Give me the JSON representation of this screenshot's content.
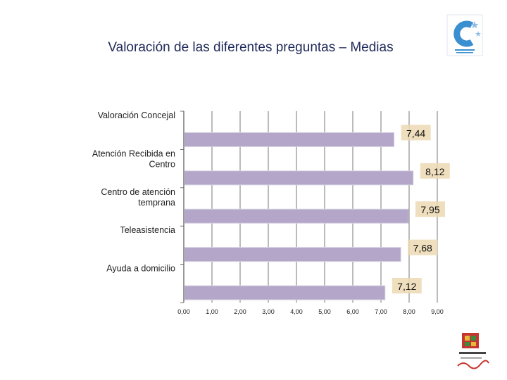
{
  "title": "Valoración de las diferentes preguntas – Medias",
  "logos": {
    "top_right": "consejo-icon",
    "bottom_right": "las-torres-icon"
  },
  "colors": {
    "bar": "#b3a6c9",
    "value_box": "#ecd9b3",
    "grid": "#555555"
  },
  "chart_data": {
    "type": "bar",
    "orientation": "horizontal",
    "title": "Valoración de las diferentes preguntas – Medias",
    "categories": [
      [
        "Valoración Concejal"
      ],
      [
        "Atención Recibida en",
        "Centro"
      ],
      [
        "Centro de atención",
        "temprana"
      ],
      [
        "Teleasistencia"
      ],
      [
        "Ayuda a domicilio"
      ]
    ],
    "values": [
      7.44,
      8.12,
      7.95,
      7.68,
      7.12
    ],
    "value_labels": [
      "7,44",
      "8,12",
      "7,95",
      "7,68",
      "7,12"
    ],
    "xlim": [
      0,
      9
    ],
    "x_ticks": [
      "0,00",
      "1,00",
      "2,00",
      "3,00",
      "4,00",
      "5,00",
      "6,00",
      "7,00",
      "8,00",
      "9,00"
    ],
    "grid": true,
    "legend": "none"
  }
}
